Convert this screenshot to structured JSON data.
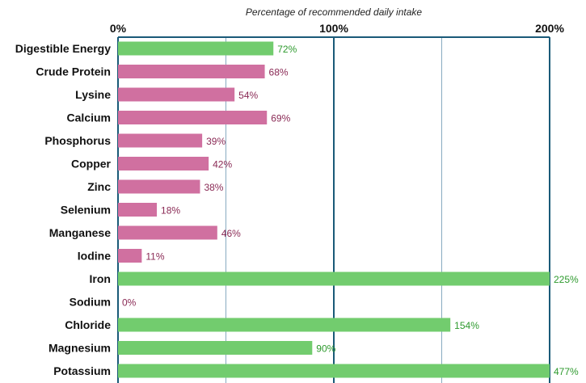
{
  "chart_data": {
    "type": "bar",
    "orientation": "horizontal",
    "title": "",
    "xlabel": "Percentage of recommended daily intake",
    "ylabel": "",
    "xlim": [
      0,
      200
    ],
    "major_ticks": [
      0,
      100,
      200
    ],
    "tick_labels": [
      "0%",
      "100%",
      "200%"
    ],
    "minor_gridlines": [
      50,
      150
    ],
    "grid": true,
    "legend": "none",
    "categories": [
      "Digestible Energy",
      "Crude Protein",
      "Lysine",
      "Calcium",
      "Phosphorus",
      "Copper",
      "Zinc",
      "Selenium",
      "Manganese",
      "Iodine",
      "Iron",
      "Sodium",
      "Chloride",
      "Magnesium",
      "Potassium"
    ],
    "values": [
      72,
      68,
      54,
      69,
      39,
      42,
      38,
      18,
      46,
      11,
      225,
      0,
      154,
      90,
      477
    ],
    "value_labels": [
      "72%",
      "68%",
      "54%",
      "69%",
      "39%",
      "42%",
      "38%",
      "18%",
      "46%",
      "11%",
      "225%",
      "0%",
      "154%",
      "90%",
      "477%"
    ],
    "bar_colors": [
      "#72cc6e",
      "#d070a0",
      "#d070a0",
      "#d070a0",
      "#d070a0",
      "#d070a0",
      "#d070a0",
      "#d070a0",
      "#d070a0",
      "#d070a0",
      "#72cc6e",
      "#72cc6e",
      "#72cc6e",
      "#72cc6e",
      "#72cc6e"
    ],
    "label_colors": [
      "#2e9a2e",
      "#8a2a55",
      "#8a2a55",
      "#8a2a55",
      "#8a2a55",
      "#8a2a55",
      "#8a2a55",
      "#8a2a55",
      "#8a2a55",
      "#8a2a55",
      "#2e9a2e",
      "#8a2a55",
      "#2e9a2e",
      "#2e9a2e",
      "#2e9a2e"
    ],
    "major_grid_color": "#1a5a78",
    "minor_grid_color": "#88aac0"
  }
}
